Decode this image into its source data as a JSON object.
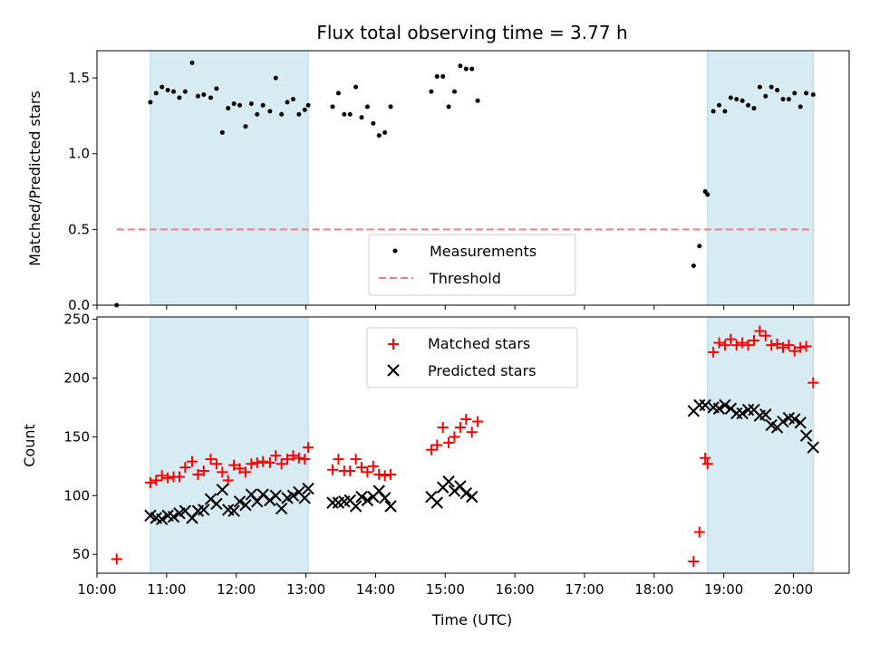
{
  "chart_data": [
    {
      "type": "scatter",
      "title": "Flux total observing time = 3.77 h",
      "xlabel": "",
      "ylabel": "Matched/Predicted stars",
      "xlim": [
        "10:00",
        "20:48"
      ],
      "ylim": [
        0,
        1.68
      ],
      "yticks": [
        "0.0",
        "0.5",
        "1.0",
        "1.5"
      ],
      "grid": false,
      "legend_position": "bottom-center",
      "shaded_intervals": [
        [
          "10:46",
          "13:02"
        ],
        [
          "18:46",
          "20:17"
        ]
      ],
      "shade_color": "#add8e6",
      "threshold": {
        "name": "Threshold",
        "value": 0.5,
        "x_start": "10:17",
        "x_end": "20:17",
        "color": "#f08080"
      },
      "series": [
        {
          "name": "Measurements",
          "color": "#000000",
          "x": [
            "10:17",
            "10:46",
            "10:51",
            "10:56",
            "11:01",
            "11:06",
            "11:11",
            "11:16",
            "11:22",
            "11:27",
            "11:32",
            "11:38",
            "11:43",
            "11:48",
            "11:53",
            "11:58",
            "12:03",
            "12:08",
            "12:13",
            "12:18",
            "12:23",
            "12:29",
            "12:34",
            "12:39",
            "12:44",
            "12:49",
            "12:54",
            "12:59",
            "13:02",
            "13:23",
            "13:28",
            "13:33",
            "13:38",
            "13:43",
            "13:48",
            "13:53",
            "13:58",
            "14:03",
            "14:08",
            "14:13",
            "14:48",
            "14:53",
            "14:58",
            "15:03",
            "15:08",
            "15:13",
            "15:18",
            "15:23",
            "15:28",
            "18:34",
            "18:39",
            "18:44",
            "18:46",
            "18:51",
            "18:56",
            "19:01",
            "19:06",
            "19:11",
            "19:16",
            "19:21",
            "19:26",
            "19:31",
            "19:36",
            "19:41",
            "19:46",
            "19:51",
            "19:56",
            "20:01",
            "20:06",
            "20:11",
            "20:17"
          ],
          "y": [
            0.0,
            1.34,
            1.4,
            1.44,
            1.42,
            1.41,
            1.37,
            1.41,
            1.6,
            1.38,
            1.39,
            1.37,
            1.43,
            1.14,
            1.3,
            1.33,
            1.32,
            1.18,
            1.33,
            1.26,
            1.32,
            1.28,
            1.5,
            1.26,
            1.34,
            1.36,
            1.26,
            1.29,
            1.32,
            1.31,
            1.4,
            1.26,
            1.26,
            1.44,
            1.24,
            1.31,
            1.2,
            1.12,
            1.14,
            1.31,
            1.41,
            1.51,
            1.51,
            1.31,
            1.41,
            1.58,
            1.56,
            1.56,
            1.35,
            0.26,
            0.39,
            0.75,
            0.73,
            1.28,
            1.32,
            1.28,
            1.37,
            1.36,
            1.35,
            1.32,
            1.3,
            1.44,
            1.38,
            1.44,
            1.42,
            1.36,
            1.36,
            1.4,
            1.31,
            1.4,
            1.39
          ]
        }
      ]
    },
    {
      "type": "scatter",
      "title": "",
      "xlabel": "Time (UTC)",
      "ylabel": "Count",
      "xlim": [
        "10:00",
        "20:48"
      ],
      "xticks": [
        "10:00",
        "11:00",
        "12:00",
        "13:00",
        "14:00",
        "15:00",
        "16:00",
        "17:00",
        "18:00",
        "19:00",
        "20:00"
      ],
      "ylim": [
        34,
        252
      ],
      "yticks": [
        "50",
        "100",
        "150",
        "200",
        "250"
      ],
      "grid": false,
      "legend_position": "top-center",
      "shaded_intervals": [
        [
          "10:46",
          "13:02"
        ],
        [
          "18:46",
          "20:17"
        ]
      ],
      "shade_color": "#add8e6",
      "series": [
        {
          "name": "Matched stars",
          "color": "#ff0000",
          "marker": "plus",
          "x": [
            "10:17",
            "10:46",
            "10:51",
            "10:56",
            "11:01",
            "11:06",
            "11:11",
            "11:16",
            "11:22",
            "11:27",
            "11:32",
            "11:38",
            "11:43",
            "11:48",
            "11:53",
            "11:58",
            "12:03",
            "12:08",
            "12:13",
            "12:18",
            "12:23",
            "12:29",
            "12:34",
            "12:39",
            "12:44",
            "12:49",
            "12:54",
            "12:59",
            "13:02",
            "13:23",
            "13:28",
            "13:33",
            "13:38",
            "13:43",
            "13:48",
            "13:53",
            "13:58",
            "14:03",
            "14:08",
            "14:13",
            "14:48",
            "14:53",
            "14:58",
            "15:03",
            "15:08",
            "15:13",
            "15:18",
            "15:23",
            "15:28",
            "18:34",
            "18:39",
            "18:44",
            "18:46",
            "18:51",
            "18:56",
            "19:01",
            "19:06",
            "19:11",
            "19:16",
            "19:21",
            "19:26",
            "19:31",
            "19:36",
            "19:41",
            "19:46",
            "19:51",
            "19:56",
            "20:01",
            "20:06",
            "20:11",
            "20:17"
          ],
          "y": [
            46,
            111,
            113,
            117,
            115,
            116,
            116,
            124,
            129,
            118,
            121,
            131,
            127,
            120,
            113,
            126,
            123,
            120,
            127,
            128,
            129,
            128,
            134,
            127,
            131,
            134,
            132,
            131,
            141,
            122,
            131,
            121,
            121,
            131,
            124,
            120,
            125,
            118,
            117,
            118,
            139,
            143,
            158,
            145,
            150,
            158,
            165,
            154,
            163,
            44,
            69,
            132,
            127,
            222,
            230,
            228,
            233,
            228,
            230,
            228,
            232,
            240,
            236,
            228,
            229,
            226,
            228,
            223,
            226,
            227,
            196
          ]
        },
        {
          "name": "Predicted stars",
          "color": "#000000",
          "marker": "x",
          "x": [
            "10:46",
            "10:51",
            "10:56",
            "11:01",
            "11:06",
            "11:11",
            "11:16",
            "11:22",
            "11:27",
            "11:32",
            "11:38",
            "11:43",
            "11:48",
            "11:53",
            "11:58",
            "12:03",
            "12:08",
            "12:13",
            "12:18",
            "12:23",
            "12:29",
            "12:34",
            "12:39",
            "12:44",
            "12:49",
            "12:54",
            "12:59",
            "13:02",
            "13:23",
            "13:28",
            "13:33",
            "13:38",
            "13:43",
            "13:48",
            "13:53",
            "13:58",
            "14:03",
            "14:08",
            "14:13",
            "14:48",
            "14:53",
            "14:58",
            "15:03",
            "15:08",
            "15:13",
            "15:18",
            "15:23",
            "18:34",
            "18:39",
            "18:44",
            "18:51",
            "18:56",
            "19:01",
            "19:06",
            "19:11",
            "19:16",
            "19:21",
            "19:26",
            "19:31",
            "19:36",
            "19:41",
            "19:46",
            "19:51",
            "19:56",
            "20:01",
            "20:06",
            "20:11",
            "20:17"
          ],
          "y": [
            83,
            81,
            80,
            83,
            82,
            85,
            87,
            81,
            87,
            88,
            97,
            93,
            105,
            88,
            87,
            95,
            92,
            101,
            95,
            101,
            96,
            100,
            89,
            98,
            100,
            103,
            98,
            106,
            94,
            94,
            95,
            96,
            91,
            99,
            96,
            99,
            104,
            98,
            91,
            99,
            94,
            107,
            112,
            104,
            108,
            102,
            99,
            172,
            177,
            177,
            175,
            174,
            177,
            174,
            170,
            170,
            173,
            173,
            168,
            169,
            160,
            158,
            163,
            166,
            165,
            162,
            151,
            141
          ]
        }
      ]
    }
  ]
}
